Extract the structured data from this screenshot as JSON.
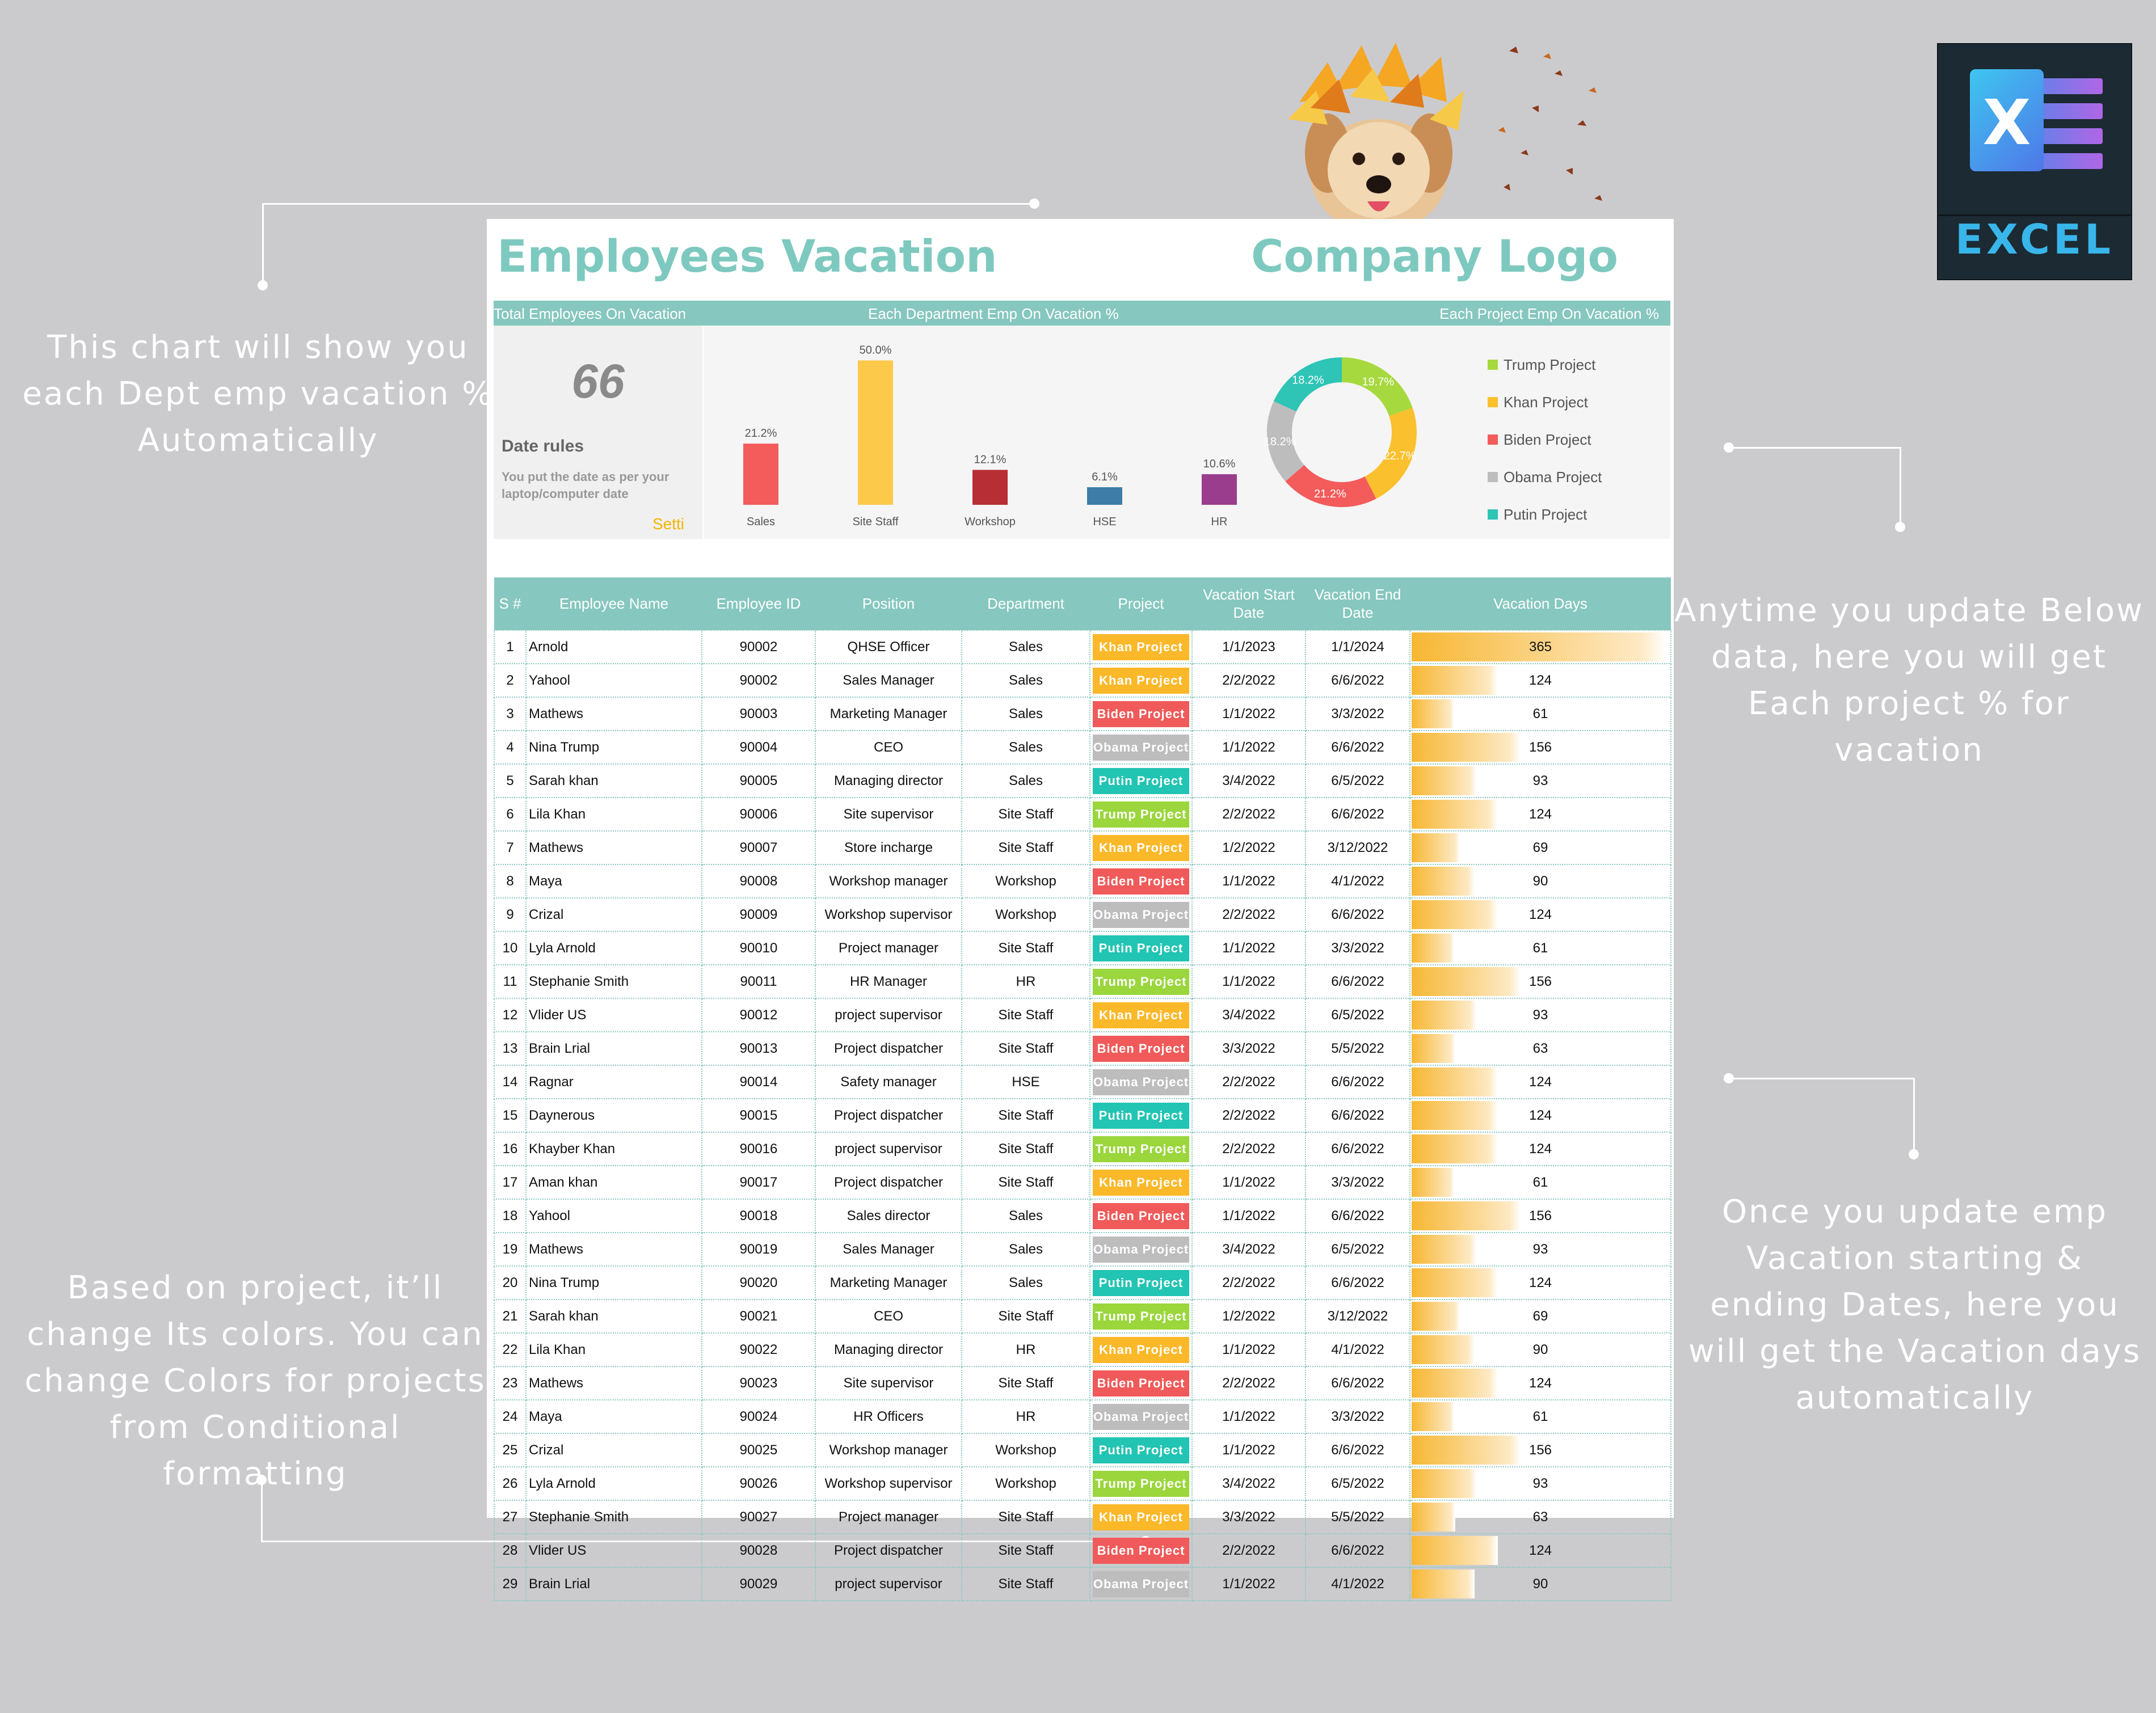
{
  "callouts": {
    "dept_chart": "This chart will show you each Dept emp vacation % Automatically",
    "project_chart": "Anytime you update Below data, here you will get Each project % for vacation",
    "vacation_days": "Once you update emp Vacation starting & ending Dates, here you will get the Vacation days automatically",
    "project_colors": "Based on project, it’ll change Its colors. You can change Colors for projects from Conditional formatting"
  },
  "excel_badge": {
    "letter": "X",
    "label": "EXCEL"
  },
  "sheet": {
    "title": "Employees Vacation",
    "company_logo": "Company Logo"
  },
  "dashboard": {
    "header_total": "Total Employees On Vacation",
    "header_dept": "Each Department Emp On Vacation %",
    "header_project": "Each Project Emp On Vacation %",
    "total_value": "66",
    "date_rules_title": "Date rules",
    "date_rules_note": "You put the date as per your laptop/computer date",
    "setting_link": "Setti"
  },
  "chart_data": [
    {
      "type": "bar",
      "categories": [
        "Sales",
        "Site Staff",
        "Workshop",
        "HSE",
        "HR"
      ],
      "values": [
        21.2,
        50.0,
        12.1,
        6.1,
        10.6
      ],
      "labels": [
        "21.2%",
        "50.0%",
        "12.1%",
        "6.1%",
        "10.6%"
      ],
      "colors": [
        "#f45b5b",
        "#fdc94a",
        "#b72e34",
        "#3e7ea6",
        "#9a3d8d"
      ],
      "ylim": [
        0,
        55
      ]
    },
    {
      "type": "pie",
      "categories": [
        "Trump Project",
        "Khan Project",
        "Biden Project",
        "Obama Project",
        "Putin Project"
      ],
      "values": [
        19.7,
        22.7,
        21.2,
        18.2,
        18.2
      ],
      "labels": [
        "19.7%",
        "22.7%",
        "21.2%",
        "18.2%",
        "18.2%"
      ],
      "colors": [
        "#a6d93e",
        "#fbc02d",
        "#f45b5b",
        "#bdbdbd",
        "#2ec4b6"
      ]
    }
  ],
  "projects": {
    "Khan Project": "#fbb829",
    "Biden Project": "#f05a5a",
    "Obama Project": "#bdbdbd",
    "Putin Project": "#22c4b3",
    "Trump Project": "#9ad63c"
  },
  "table": {
    "headers": [
      "S #",
      "Employee Name",
      "Employee ID",
      "Position",
      "Department",
      "Project",
      "Vacation Start Date",
      "Vacation End Date",
      "Vacation Days"
    ],
    "days_max": 365,
    "rows": [
      [
        "1",
        "Arnold",
        "90002",
        "QHSE Officer",
        "Sales",
        "Khan Project",
        "1/1/2023",
        "1/1/2024",
        "365"
      ],
      [
        "2",
        "Yahool",
        "90002",
        "Sales Manager",
        "Sales",
        "Khan Project",
        "2/2/2022",
        "6/6/2022",
        "124"
      ],
      [
        "3",
        "Mathews",
        "90003",
        "Marketing Manager",
        "Sales",
        "Biden Project",
        "1/1/2022",
        "3/3/2022",
        "61"
      ],
      [
        "4",
        "Nina Trump",
        "90004",
        "CEO",
        "Sales",
        "Obama Project",
        "1/1/2022",
        "6/6/2022",
        "156"
      ],
      [
        "5",
        "Sarah khan",
        "90005",
        "Managing director",
        "Sales",
        "Putin Project",
        "3/4/2022",
        "6/5/2022",
        "93"
      ],
      [
        "6",
        "Lila Khan",
        "90006",
        "Site supervisor",
        "Site Staff",
        "Trump Project",
        "2/2/2022",
        "6/6/2022",
        "124"
      ],
      [
        "7",
        "Mathews",
        "90007",
        "Store incharge",
        "Site Staff",
        "Khan Project",
        "1/2/2022",
        "3/12/2022",
        "69"
      ],
      [
        "8",
        "Maya",
        "90008",
        "Workshop manager",
        "Workshop",
        "Biden Project",
        "1/1/2022",
        "4/1/2022",
        "90"
      ],
      [
        "9",
        "Crizal",
        "90009",
        "Workshop supervisor",
        "Workshop",
        "Obama Project",
        "2/2/2022",
        "6/6/2022",
        "124"
      ],
      [
        "10",
        "Lyla Arnold",
        "90010",
        "Project manager",
        "Site Staff",
        "Putin Project",
        "1/1/2022",
        "3/3/2022",
        "61"
      ],
      [
        "11",
        "Stephanie Smith",
        "90011",
        "HR Manager",
        "HR",
        "Trump Project",
        "1/1/2022",
        "6/6/2022",
        "156"
      ],
      [
        "12",
        "Vlider US",
        "90012",
        "project supervisor",
        "Site Staff",
        "Khan Project",
        "3/4/2022",
        "6/5/2022",
        "93"
      ],
      [
        "13",
        "Brain Lrial",
        "90013",
        "Project dispatcher",
        "Site Staff",
        "Biden Project",
        "3/3/2022",
        "5/5/2022",
        "63"
      ],
      [
        "14",
        "Ragnar",
        "90014",
        "Safety manager",
        "HSE",
        "Obama Project",
        "2/2/2022",
        "6/6/2022",
        "124"
      ],
      [
        "15",
        "Daynerous",
        "90015",
        "Project dispatcher",
        "Site Staff",
        "Putin Project",
        "2/2/2022",
        "6/6/2022",
        "124"
      ],
      [
        "16",
        "Khayber Khan",
        "90016",
        "project supervisor",
        "Site Staff",
        "Trump Project",
        "2/2/2022",
        "6/6/2022",
        "124"
      ],
      [
        "17",
        "Aman khan",
        "90017",
        "Project dispatcher",
        "Site Staff",
        "Khan Project",
        "1/1/2022",
        "3/3/2022",
        "61"
      ],
      [
        "18",
        "Yahool",
        "90018",
        "Sales director",
        "Sales",
        "Biden Project",
        "1/1/2022",
        "6/6/2022",
        "156"
      ],
      [
        "19",
        "Mathews",
        "90019",
        "Sales Manager",
        "Sales",
        "Obama Project",
        "3/4/2022",
        "6/5/2022",
        "93"
      ],
      [
        "20",
        "Nina Trump",
        "90020",
        "Marketing Manager",
        "Sales",
        "Putin Project",
        "2/2/2022",
        "6/6/2022",
        "124"
      ],
      [
        "21",
        "Sarah khan",
        "90021",
        "CEO",
        "Site Staff",
        "Trump Project",
        "1/2/2022",
        "3/12/2022",
        "69"
      ],
      [
        "22",
        "Lila Khan",
        "90022",
        "Managing director",
        "HR",
        "Khan Project",
        "1/1/2022",
        "4/1/2022",
        "90"
      ],
      [
        "23",
        "Mathews",
        "90023",
        "Site supervisor",
        "Site Staff",
        "Biden Project",
        "2/2/2022",
        "6/6/2022",
        "124"
      ],
      [
        "24",
        "Maya",
        "90024",
        "HR Officers",
        "HR",
        "Obama Project",
        "1/1/2022",
        "3/3/2022",
        "61"
      ],
      [
        "25",
        "Crizal",
        "90025",
        "Workshop manager",
        "Workshop",
        "Putin Project",
        "1/1/2022",
        "6/6/2022",
        "156"
      ],
      [
        "26",
        "Lyla Arnold",
        "90026",
        "Workshop supervisor",
        "Workshop",
        "Trump Project",
        "3/4/2022",
        "6/5/2022",
        "93"
      ],
      [
        "27",
        "Stephanie Smith",
        "90027",
        "Project manager",
        "Site Staff",
        "Khan Project",
        "3/3/2022",
        "5/5/2022",
        "63"
      ],
      [
        "28",
        "Vlider US",
        "90028",
        "Project dispatcher",
        "Site Staff",
        "Biden Project",
        "2/2/2022",
        "6/6/2022",
        "124"
      ],
      [
        "29",
        "Brain Lrial",
        "90029",
        "project supervisor",
        "Site Staff",
        "Obama Project",
        "1/1/2022",
        "4/1/2022",
        "90"
      ]
    ]
  }
}
